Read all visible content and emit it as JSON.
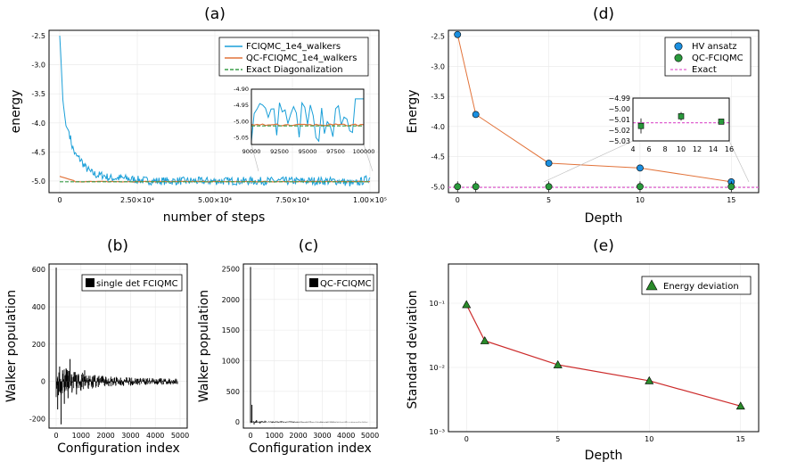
{
  "chart_data": [
    {
      "id": "a",
      "panel_title": "(a)",
      "type": "line",
      "xlabel": "number of steps",
      "ylabel": "energy",
      "xlim": [
        0,
        100000
      ],
      "ylim": [
        -5.2,
        -2.5
      ],
      "xticks": [
        0,
        25000,
        50000,
        75000,
        100000
      ],
      "xtick_labels": [
        "0",
        "2.50×10⁴",
        "5.00×10⁴",
        "7.50×10⁴",
        "1.00×10⁵"
      ],
      "yticks": [
        -2.5,
        -3.0,
        -3.5,
        -4.0,
        -4.5,
        -5.0
      ],
      "ytick_labels": [
        "-2.5",
        "-3.0",
        "-3.5",
        "-4.0",
        "-4.5",
        "-5.0"
      ],
      "series": [
        {
          "name": "FCIQMC_1e4_walkers",
          "color": "#1a9fd8",
          "style": "solid",
          "x": [
            0,
            500,
            1000,
            2000,
            3000,
            4000,
            5000,
            6000,
            7000,
            8000,
            9000,
            10000,
            12000,
            14000,
            16000,
            18000,
            20000,
            25000,
            30000,
            40000,
            50000,
            60000,
            70000,
            80000,
            90000,
            95000,
            100000
          ],
          "y": [
            -2.5,
            -3.0,
            -3.6,
            -4.05,
            -4.15,
            -4.4,
            -4.55,
            -4.6,
            -4.65,
            -4.75,
            -4.8,
            -4.85,
            -4.9,
            -4.9,
            -4.95,
            -4.95,
            -4.95,
            -4.98,
            -5.0,
            -5.0,
            -5.0,
            -5.0,
            -5.0,
            -5.0,
            -5.0,
            -5.05,
            -4.95
          ]
        },
        {
          "name": "QC-FCIQMC_1e4_walkers",
          "color": "#e2733a",
          "style": "solid",
          "x": [
            0,
            5000,
            20000,
            100000
          ],
          "y": [
            -4.92,
            -5.0,
            -5.01,
            -5.01
          ]
        },
        {
          "name": "Exact Diagonalization",
          "color": "#3a9e48",
          "style": "dashed",
          "x": [
            0,
            100000
          ],
          "y": [
            -5.013,
            -5.013
          ]
        }
      ],
      "inset": {
        "xlim": [
          90000,
          100000
        ],
        "ylim": [
          -5.07,
          -4.9
        ],
        "xticks": [
          90000,
          92500,
          95000,
          97500,
          100000
        ],
        "xtick_labels": [
          "90000",
          "92500",
          "95000",
          "97500",
          "100000"
        ],
        "yticks": [
          -4.9,
          -4.95,
          -5.0,
          -5.05
        ],
        "ytick_labels": [
          "-4.90",
          "-4.95",
          "-5.00",
          "-5.05"
        ]
      }
    },
    {
      "id": "b",
      "panel_title": "(b)",
      "type": "bar",
      "xlabel": "Configuration index",
      "ylabel": "Walker population",
      "xlim": [
        0,
        5000
      ],
      "ylim": [
        -250,
        620
      ],
      "xticks": [
        0,
        1000,
        2000,
        3000,
        4000,
        5000
      ],
      "xtick_labels": [
        "0",
        "1000",
        "2000",
        "3000",
        "4000",
        "5000"
      ],
      "yticks": [
        -200,
        0,
        200,
        400,
        600
      ],
      "ytick_labels": [
        "-200",
        "0",
        "200",
        "400",
        "600"
      ],
      "series": [
        {
          "name": "single det FCIQMC",
          "color": "#000000",
          "x": [
            1,
            60,
            140,
            200,
            260,
            330,
            400,
            480,
            560,
            640,
            720,
            820,
            900,
            1000,
            1150,
            1300,
            1500,
            1700,
            2000,
            2300,
            2600,
            3000,
            3400,
            3800,
            4200,
            4600
          ],
          "y": [
            610,
            -150,
            80,
            -230,
            60,
            -120,
            70,
            -90,
            120,
            -60,
            50,
            -70,
            40,
            -50,
            60,
            -40,
            30,
            -30,
            25,
            -20,
            20,
            -15,
            12,
            -10,
            8,
            -6
          ]
        }
      ]
    },
    {
      "id": "c",
      "panel_title": "(c)",
      "type": "bar",
      "xlabel": "Configuration index",
      "ylabel": "Walker population",
      "xlim": [
        0,
        5000
      ],
      "ylim": [
        -100,
        2550
      ],
      "xticks": [
        0,
        1000,
        2000,
        3000,
        4000,
        5000
      ],
      "xtick_labels": [
        "0",
        "1000",
        "2000",
        "3000",
        "4000",
        "5000"
      ],
      "yticks": [
        0,
        500,
        1000,
        1500,
        2000,
        2500
      ],
      "ytick_labels": [
        "0",
        "500",
        "1000",
        "1500",
        "2000",
        "2500"
      ],
      "series": [
        {
          "name": "QC-FCIQMC",
          "color": "#000000",
          "x": [
            1,
            60,
            150,
            250,
            400,
            600,
            900,
            1300,
            1800,
            2500,
            3200,
            4000
          ],
          "y": [
            2530,
            280,
            -40,
            30,
            -25,
            20,
            -15,
            12,
            -10,
            8,
            -6,
            5
          ]
        }
      ]
    },
    {
      "id": "d",
      "panel_title": "(d)",
      "type": "scatter",
      "xlabel": "Depth",
      "ylabel": "Energy",
      "xlim": [
        -0.5,
        16.5
      ],
      "ylim": [
        -5.1,
        -2.4
      ],
      "xticks": [
        0,
        5,
        10,
        15
      ],
      "xtick_labels": [
        "0",
        "5",
        "10",
        "15"
      ],
      "yticks": [
        -2.5,
        -3.0,
        -3.5,
        -4.0,
        -4.5,
        -5.0
      ],
      "ytick_labels": [
        "-2.5",
        "-3.0",
        "-3.5",
        "-4.0",
        "-4.5",
        "-5.0"
      ],
      "series": [
        {
          "name": "HV ansatz",
          "color": "#1a8fe0",
          "x": [
            0,
            1,
            5,
            10,
            15
          ],
          "y": [
            -2.47,
            -3.8,
            -4.61,
            -4.69,
            -4.92
          ]
        },
        {
          "name": "QC-FCIQMC",
          "color": "#2a9a3c",
          "x": [
            0,
            1,
            5,
            10,
            15
          ],
          "y": [
            -5.0,
            -5.0,
            -5.0,
            -5.0,
            -5.0
          ]
        },
        {
          "name": "Exact",
          "color": "#e060d0",
          "style": "dashed",
          "x": [
            -0.5,
            16.5
          ],
          "y": [
            -5.013,
            -5.013
          ]
        }
      ],
      "inset": {
        "xlim": [
          4,
          16
        ],
        "ylim": [
          -5.03,
          -4.99
        ],
        "xticks": [
          4,
          6,
          8,
          10,
          12,
          14,
          16
        ],
        "xtick_labels": [
          "4",
          "6",
          "8",
          "10",
          "12",
          "14",
          "16"
        ],
        "yticks": [
          -4.99,
          -5.0,
          -5.01,
          -5.02,
          -5.03
        ],
        "ytick_labels": [
          "−4.99",
          "−5.00",
          "−5.01",
          "−5.02",
          "−5.03"
        ],
        "points": {
          "x": [
            5,
            10,
            15
          ],
          "y": [
            -5.016,
            -5.007,
            -5.012
          ],
          "err": [
            0.007,
            0.004,
            0.002
          ]
        }
      }
    },
    {
      "id": "e",
      "panel_title": "(e)",
      "type": "line",
      "xlabel": "Depth",
      "ylabel": "Standard deviation",
      "xlim": [
        -0.5,
        15.5
      ],
      "ylim_log10": [
        -3,
        -0.5
      ],
      "xticks": [
        0,
        5,
        10,
        15
      ],
      "xtick_labels": [
        "0",
        "5",
        "10",
        "15"
      ],
      "yticks": [
        -3,
        -2,
        -1
      ],
      "ytick_labels": [
        "10⁻³",
        "10⁻²",
        "10⁻¹"
      ],
      "series": [
        {
          "name": "Energy deviation",
          "color": "#cc2a2a",
          "marker_color": "#2a8a2a",
          "x": [
            0,
            1,
            5,
            10,
            15
          ],
          "y": [
            0.095,
            0.026,
            0.011,
            0.0062,
            0.0025
          ]
        }
      ]
    }
  ]
}
